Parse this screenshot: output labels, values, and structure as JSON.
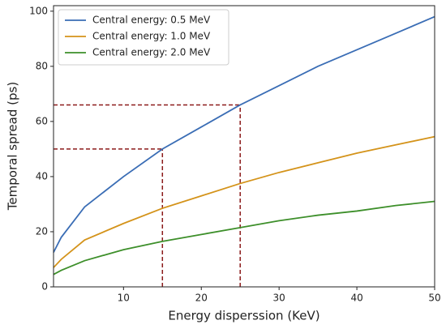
{
  "chart_data": {
    "type": "line",
    "xlabel": "Energy disperssion (KeV)",
    "ylabel": "Temporal spread (ps)",
    "x": [
      1,
      2,
      5,
      10,
      15,
      20,
      25,
      30,
      35,
      40,
      45,
      50
    ],
    "series": [
      {
        "name": "Central energy: 0.5 MeV",
        "color": "#3a6db5",
        "values": [
          12.5,
          18,
          29,
          40,
          50,
          58,
          66,
          73,
          80,
          86,
          92,
          98
        ]
      },
      {
        "name": "Central energy: 1.0 MeV",
        "color": "#d4931a",
        "values": [
          7,
          10,
          17,
          23,
          28.5,
          33,
          37.5,
          41.5,
          45,
          48.5,
          51.5,
          54.5
        ]
      },
      {
        "name": "Central energy: 2.0 MeV",
        "color": "#3d8f2a",
        "values": [
          4.5,
          6,
          9.5,
          13.5,
          16.5,
          19,
          21.5,
          24,
          26,
          27.5,
          29.5,
          31
        ]
      }
    ],
    "reference_lines": [
      {
        "x": 15,
        "y": 50
      },
      {
        "x": 25,
        "y": 66
      }
    ],
    "reference_color": "#8b1a1a",
    "xlim": [
      1,
      50
    ],
    "xticks": [
      10,
      20,
      30,
      40,
      50
    ],
    "ylim": [
      0,
      102
    ],
    "yticks": [
      0,
      20,
      40,
      60,
      80,
      100
    ],
    "legend": "upper left"
  }
}
